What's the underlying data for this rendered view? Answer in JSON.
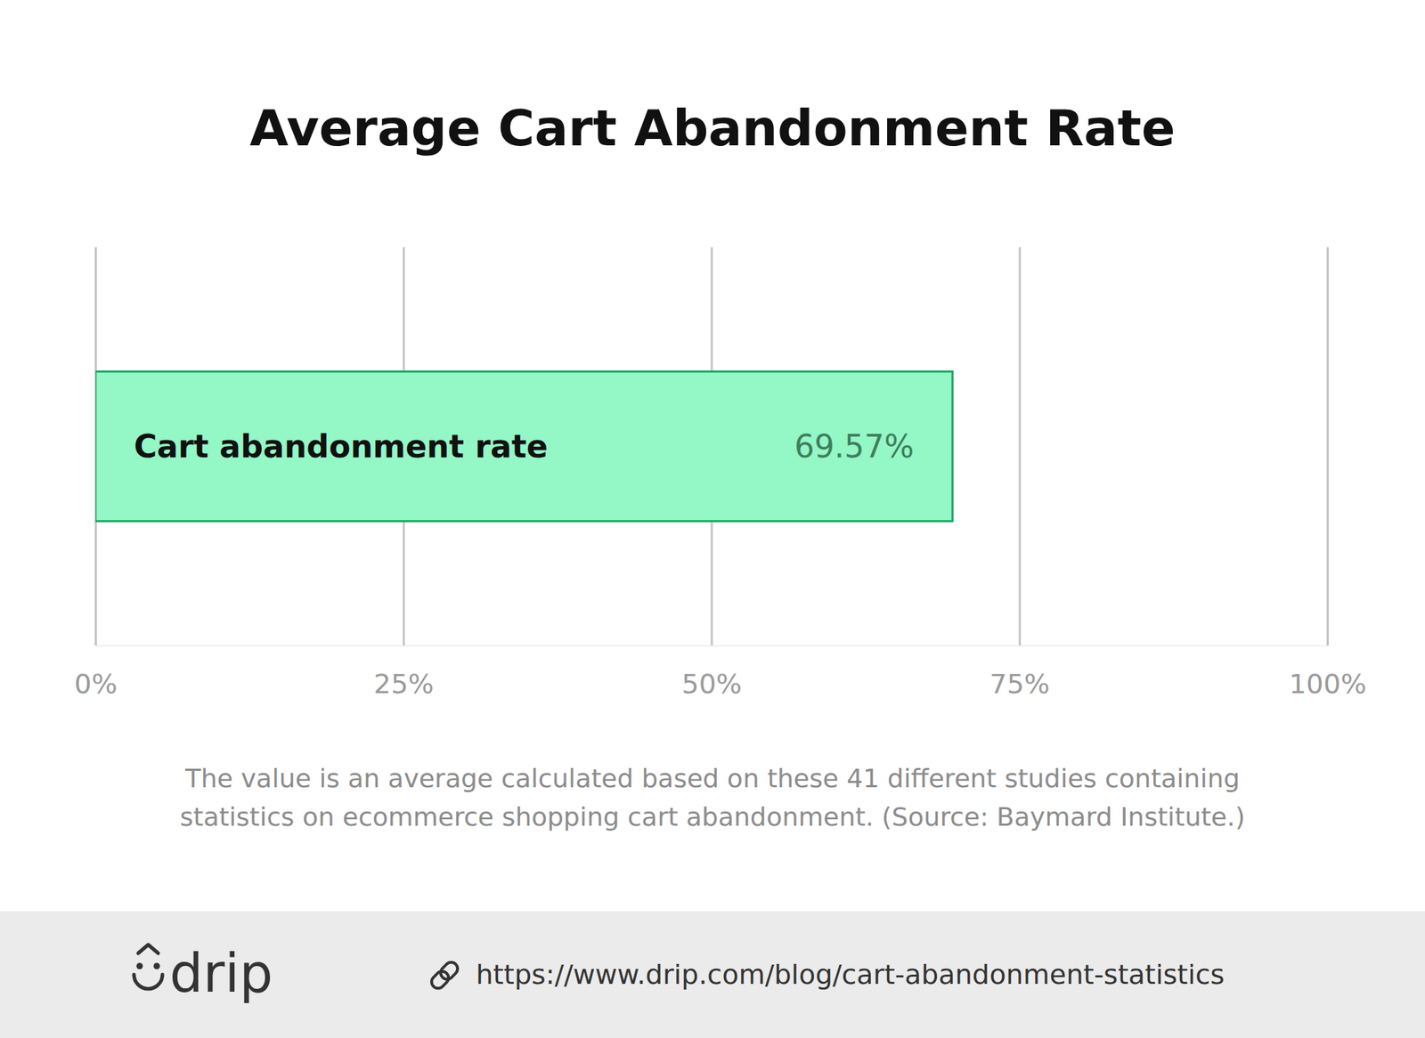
{
  "chart_data": {
    "type": "bar",
    "orientation": "horizontal",
    "title": "Average Cart Abandonment Rate",
    "categories": [
      "Cart abandonment rate"
    ],
    "values": [
      69.57
    ],
    "value_labels": [
      "69.57%"
    ],
    "data_labels": true,
    "color": "#93f7c6",
    "xlim": [
      0,
      100
    ],
    "xticks": [
      {
        "value": 0,
        "label": "0%"
      },
      {
        "value": 25,
        "label": "25%"
      },
      {
        "value": 50,
        "label": "50%"
      },
      {
        "value": 75,
        "label": "75%"
      },
      {
        "value": 100,
        "label": "100%"
      }
    ],
    "grid": true,
    "annotations": [
      "The value is an average calculated based on these 41 different studies containing",
      "statistics on ecommerce shopping cart abandonment. (Source: Baymard Institute.)"
    ]
  },
  "footer": {
    "logo": "drip",
    "url": "https://www.drip.com/blog/cart-abandonment-statistics"
  }
}
